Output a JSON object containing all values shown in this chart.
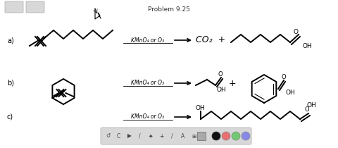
{
  "title": "Problem 9.25",
  "bg_color": "#ffffff",
  "outer_bg": "#e8e8e8",
  "toolbar_bg": "#d8d8d8",
  "label_a": "a)",
  "label_b": "b)",
  "label_c": "c)",
  "reagent_a": "KMnO₄ or O₃",
  "reagent_b": "KMnO₄ or O₃",
  "reagent_c": "KMnO₄ or O₃",
  "product_a_text": "CO₂  +",
  "product_a_oh": "OH",
  "product_b_oh1": "OH",
  "product_b_oh2": "OH",
  "product_b_plus": "+",
  "product_c_oh1": "OH",
  "product_c_oh2": "OH",
  "toolbar_colors": [
    "#111111",
    "#e87070",
    "#70c870",
    "#8888e8"
  ]
}
